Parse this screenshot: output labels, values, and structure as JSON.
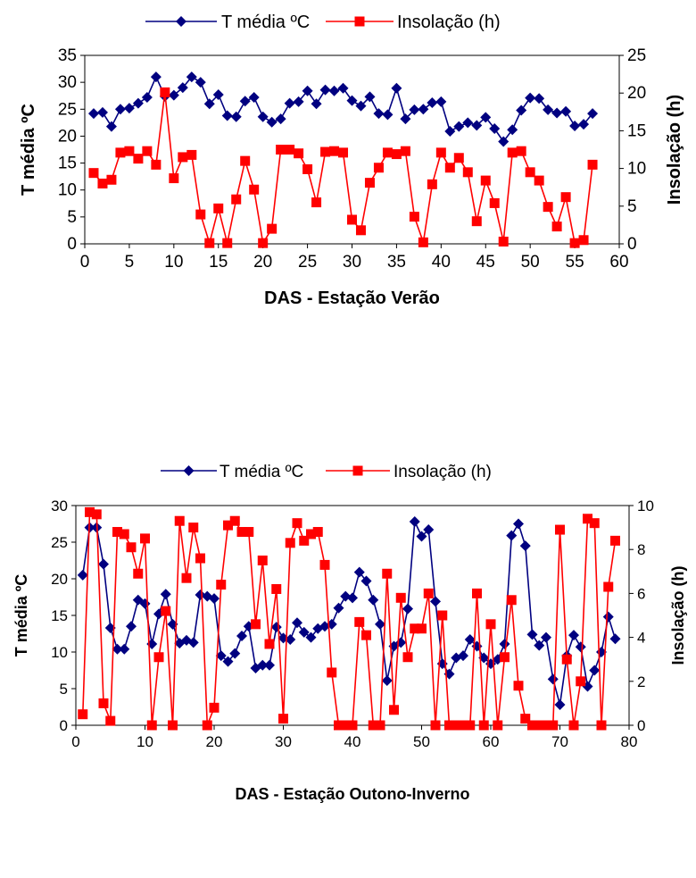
{
  "chart_data": [
    {
      "type": "line",
      "title": "",
      "xlabel": "DAS - Estação Verão",
      "ylabel": "T média ºC",
      "y2label": "Insolação (h)",
      "xlim": [
        0,
        60
      ],
      "ylim": [
        0,
        35
      ],
      "y2lim": [
        0,
        25
      ],
      "xticks": [
        0,
        5,
        10,
        15,
        20,
        25,
        30,
        35,
        40,
        45,
        50,
        55,
        60
      ],
      "yticks": [
        0,
        5,
        10,
        15,
        20,
        25,
        30,
        35
      ],
      "y2ticks": [
        0,
        5,
        10,
        15,
        20,
        25
      ],
      "legend_position": "top",
      "series": [
        {
          "name": "T média ºC",
          "axis": "left",
          "color": "#000080",
          "marker": "diamond",
          "x": [
            1,
            2,
            3,
            4,
            5,
            6,
            7,
            8,
            9,
            10,
            11,
            12,
            13,
            14,
            15,
            16,
            17,
            18,
            19,
            20,
            21,
            22,
            23,
            24,
            25,
            26,
            27,
            28,
            29,
            30,
            31,
            32,
            33,
            34,
            35,
            36,
            37,
            38,
            39,
            40,
            41,
            42,
            43,
            44,
            45,
            46,
            47,
            48,
            49,
            50,
            51,
            52,
            53,
            54,
            55,
            56,
            57
          ],
          "values": [
            24.2,
            24.4,
            21.8,
            25.0,
            25.2,
            26.1,
            27.2,
            31.0,
            27.4,
            27.6,
            29.0,
            31.0,
            30.0,
            26.0,
            27.7,
            23.8,
            23.6,
            26.5,
            27.2,
            23.6,
            22.6,
            23.2,
            26.1,
            26.4,
            28.4,
            26.0,
            28.6,
            28.4,
            28.9,
            26.6,
            25.6,
            27.3,
            24.2,
            24.0,
            28.9,
            23.2,
            24.9,
            25.0,
            26.2,
            26.4,
            20.9,
            21.8,
            22.5,
            22.0,
            23.5,
            21.4,
            19.0,
            21.2,
            24.8,
            27.1,
            27.0,
            24.9,
            24.3,
            24.6,
            21.9,
            22.2,
            24.2
          ]
        },
        {
          "name": "Insolação (h)",
          "axis": "right",
          "color": "#FF0000",
          "marker": "square",
          "x": [
            1,
            2,
            3,
            4,
            5,
            6,
            7,
            8,
            9,
            10,
            11,
            12,
            13,
            14,
            15,
            16,
            17,
            18,
            19,
            20,
            21,
            22,
            23,
            24,
            25,
            26,
            27,
            28,
            29,
            30,
            31,
            32,
            33,
            34,
            35,
            36,
            37,
            38,
            39,
            40,
            41,
            42,
            43,
            44,
            45,
            46,
            47,
            48,
            49,
            50,
            51,
            52,
            53,
            54,
            55,
            56,
            57
          ],
          "values": [
            9.4,
            8.0,
            8.5,
            12.1,
            12.3,
            11.3,
            12.3,
            10.5,
            20.1,
            8.7,
            11.5,
            11.8,
            3.9,
            0.1,
            4.7,
            0.1,
            5.9,
            11.0,
            7.2,
            0.1,
            2.0,
            12.5,
            12.5,
            12.0,
            9.9,
            5.5,
            12.2,
            12.3,
            12.1,
            3.2,
            1.8,
            8.1,
            10.1,
            12.1,
            11.9,
            12.3,
            3.6,
            0.2,
            7.9,
            12.1,
            10.1,
            11.4,
            9.5,
            3.0,
            8.4,
            5.4,
            0.3,
            12.1,
            12.3,
            9.5,
            8.4,
            4.9,
            2.3,
            6.2,
            0.1,
            0.5,
            10.5
          ]
        }
      ]
    },
    {
      "type": "line",
      "title": "",
      "xlabel": "DAS - Estação Outono-Inverno",
      "ylabel": "T média ºC",
      "y2label": "Insolação (h)",
      "xlim": [
        0,
        80
      ],
      "ylim": [
        0,
        30
      ],
      "y2lim": [
        0,
        10
      ],
      "xticks": [
        0,
        10,
        20,
        30,
        40,
        50,
        60,
        70,
        80
      ],
      "yticks": [
        0,
        5,
        10,
        15,
        20,
        25,
        30
      ],
      "y2ticks": [
        0,
        2,
        4,
        6,
        8,
        10
      ],
      "legend_position": "top",
      "series": [
        {
          "name": "T média ºC",
          "axis": "left",
          "color": "#000080",
          "marker": "diamond",
          "x": [
            1,
            2,
            3,
            4,
            5,
            6,
            7,
            8,
            9,
            10,
            11,
            12,
            13,
            14,
            15,
            16,
            17,
            18,
            19,
            20,
            21,
            22,
            23,
            24,
            25,
            26,
            27,
            28,
            29,
            30,
            31,
            32,
            33,
            34,
            35,
            36,
            37,
            38,
            39,
            40,
            41,
            42,
            43,
            44,
            45,
            46,
            47,
            48,
            49,
            50,
            51,
            52,
            53,
            54,
            55,
            56,
            57,
            58,
            59,
            60,
            61,
            62,
            63,
            64,
            65,
            66,
            67,
            68,
            69,
            70,
            71,
            72,
            73,
            74,
            75,
            76,
            77,
            78
          ],
          "values": [
            20.5,
            27.0,
            27.0,
            22.0,
            13.3,
            10.4,
            10.4,
            13.5,
            17.1,
            16.6,
            11.1,
            15.2,
            17.9,
            13.8,
            11.2,
            11.6,
            11.3,
            17.8,
            17.6,
            17.3,
            9.5,
            8.7,
            9.8,
            12.2,
            13.5,
            7.8,
            8.2,
            8.2,
            13.4,
            11.9,
            11.7,
            14.0,
            12.7,
            12.0,
            13.2,
            13.5,
            13.8,
            16.0,
            17.6,
            17.4,
            20.9,
            19.7,
            17.1,
            13.8,
            6.1,
            10.8,
            11.3,
            15.9,
            27.8,
            25.8,
            26.7,
            16.9,
            8.4,
            7.0,
            9.2,
            9.5,
            11.7,
            10.8,
            9.2,
            8.4,
            9.0,
            11.1,
            25.9,
            27.5,
            24.5,
            12.4,
            10.9,
            12.0,
            6.3,
            2.8,
            9.5,
            12.3,
            10.7,
            5.3,
            7.5,
            10.0,
            14.8,
            11.8
          ]
        },
        {
          "name": "Insolação (h)",
          "axis": "right",
          "color": "#FF0000",
          "marker": "square",
          "x": [
            1,
            2,
            3,
            4,
            5,
            6,
            7,
            8,
            9,
            10,
            11,
            12,
            13,
            14,
            15,
            16,
            17,
            18,
            19,
            20,
            21,
            22,
            23,
            24,
            25,
            26,
            27,
            28,
            29,
            30,
            31,
            32,
            33,
            34,
            35,
            36,
            37,
            38,
            39,
            40,
            41,
            42,
            43,
            44,
            45,
            46,
            47,
            48,
            49,
            50,
            51,
            52,
            53,
            54,
            55,
            56,
            57,
            58,
            59,
            60,
            61,
            62,
            63,
            64,
            65,
            66,
            67,
            68,
            69,
            70,
            71,
            72,
            73,
            74,
            75,
            76,
            77,
            78
          ],
          "values": [
            0.5,
            9.7,
            9.6,
            1.0,
            0.2,
            8.8,
            8.7,
            8.1,
            6.9,
            8.5,
            0.0,
            3.1,
            5.2,
            0.0,
            9.3,
            6.7,
            9.0,
            7.6,
            0.0,
            0.8,
            6.4,
            9.1,
            9.3,
            8.8,
            8.8,
            4.6,
            7.5,
            3.7,
            6.2,
            0.3,
            8.3,
            9.2,
            8.4,
            8.7,
            8.8,
            7.3,
            2.4,
            0.0,
            0.0,
            0.0,
            4.7,
            4.1,
            0.0,
            0.0,
            6.9,
            0.7,
            5.8,
            3.1,
            4.4,
            4.4,
            6.0,
            0.0,
            5.0,
            0.0,
            0.0,
            0.0,
            0.0,
            6.0,
            0.0,
            4.6,
            0.0,
            3.1,
            5.7,
            1.8,
            0.3,
            0.0,
            0.0,
            0.0,
            0.0,
            8.9,
            3.0,
            0.0,
            2.0,
            9.4,
            9.2,
            0.0,
            6.3,
            8.4
          ]
        }
      ]
    }
  ]
}
